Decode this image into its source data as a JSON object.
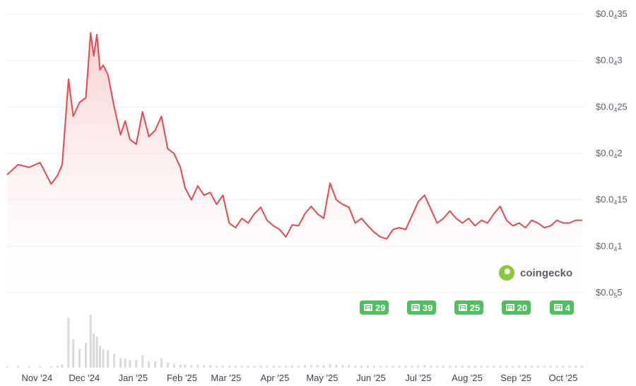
{
  "chart_data": {
    "type": "area",
    "series": [
      {
        "x": [
          "2024-10-13",
          "2024-10-20",
          "2024-10-27",
          "2024-11-03",
          "2024-11-10",
          "2024-11-14",
          "2024-11-17",
          "2024-11-21",
          "2024-11-24",
          "2024-11-28",
          "2024-12-02",
          "2024-12-05",
          "2024-12-07",
          "2024-12-09",
          "2024-12-11",
          "2024-12-13",
          "2024-12-16",
          "2024-12-20",
          "2024-12-24",
          "2024-12-27",
          "2024-12-30",
          "2025-01-03",
          "2025-01-07",
          "2025-01-11",
          "2025-01-15",
          "2025-01-19",
          "2025-01-23",
          "2025-01-27",
          "2025-01-31",
          "2025-02-03",
          "2025-02-07",
          "2025-02-11",
          "2025-02-15",
          "2025-02-19",
          "2025-02-23",
          "2025-02-27",
          "2025-03-03",
          "2025-03-07",
          "2025-03-11",
          "2025-03-15",
          "2025-03-19",
          "2025-03-23",
          "2025-03-27",
          "2025-03-31",
          "2025-04-04",
          "2025-04-08",
          "2025-04-12",
          "2025-04-16",
          "2025-04-20",
          "2025-04-24",
          "2025-04-28",
          "2025-05-02",
          "2025-05-06",
          "2025-05-10",
          "2025-05-14",
          "2025-05-18",
          "2025-05-22",
          "2025-05-26",
          "2025-05-30",
          "2025-06-03",
          "2025-06-07",
          "2025-06-11",
          "2025-06-15",
          "2025-06-19",
          "2025-06-23",
          "2025-06-27",
          "2025-07-01",
          "2025-07-05",
          "2025-07-09",
          "2025-07-13",
          "2025-07-17",
          "2025-07-21",
          "2025-07-25",
          "2025-07-29",
          "2025-08-02",
          "2025-08-06",
          "2025-08-10",
          "2025-08-14",
          "2025-08-18",
          "2025-08-22",
          "2025-08-26",
          "2025-08-30",
          "2025-09-03",
          "2025-09-07",
          "2025-09-11",
          "2025-09-15",
          "2025-09-19",
          "2025-09-23",
          "2025-09-27",
          "2025-10-01",
          "2025-10-05",
          "2025-10-09",
          "2025-10-13"
        ],
        "values": [
          1.77e-05,
          1.88e-05,
          1.85e-05,
          1.9e-05,
          1.67e-05,
          1.76e-05,
          1.88e-05,
          2.8e-05,
          2.4e-05,
          2.55e-05,
          2.6e-05,
          3.3e-05,
          3.05e-05,
          3.28e-05,
          2.9e-05,
          2.95e-05,
          2.85e-05,
          2.5e-05,
          2.2e-05,
          2.35e-05,
          2.15e-05,
          2.1e-05,
          2.45e-05,
          2.18e-05,
          2.25e-05,
          2.4e-05,
          2.05e-05,
          2e-05,
          1.85e-05,
          1.63e-05,
          1.5e-05,
          1.65e-05,
          1.55e-05,
          1.58e-05,
          1.45e-05,
          1.55e-05,
          1.25e-05,
          1.2e-05,
          1.3e-05,
          1.25e-05,
          1.35e-05,
          1.42e-05,
          1.28e-05,
          1.22e-05,
          1.18e-05,
          1.1e-05,
          1.23e-05,
          1.22e-05,
          1.35e-05,
          1.43e-05,
          1.35e-05,
          1.3e-05,
          1.68e-05,
          1.5e-05,
          1.45e-05,
          1.42e-05,
          1.25e-05,
          1.3e-05,
          1.22e-05,
          1.15e-05,
          1.1e-05,
          1.08e-05,
          1.18e-05,
          1.2e-05,
          1.18e-05,
          1.33e-05,
          1.48e-05,
          1.55e-05,
          1.4e-05,
          1.25e-05,
          1.3e-05,
          1.38e-05,
          1.3e-05,
          1.25e-05,
          1.3e-05,
          1.22e-05,
          1.28e-05,
          1.25e-05,
          1.35e-05,
          1.43e-05,
          1.28e-05,
          1.22e-05,
          1.25e-05,
          1.2e-05,
          1.28e-05,
          1.25e-05,
          1.2e-05,
          1.22e-05,
          1.28e-05,
          1.25e-05,
          1.25e-05,
          1.28e-05,
          1.28e-05
        ]
      }
    ],
    "volume": [
      0.02,
      0.03,
      0.02,
      0.02,
      0.02,
      0.03,
      0.05,
      0.8,
      0.45,
      0.3,
      0.4,
      0.85,
      0.55,
      0.5,
      0.35,
      0.3,
      0.28,
      0.22,
      0.15,
      0.15,
      0.12,
      0.12,
      0.2,
      0.1,
      0.1,
      0.15,
      0.08,
      0.06,
      0.05,
      0.05,
      0.04,
      0.04,
      0.04,
      0.04,
      0.03,
      0.03,
      0.03,
      0.03,
      0.03,
      0.03,
      0.03,
      0.03,
      0.03,
      0.03,
      0.03,
      0.03,
      0.03,
      0.03,
      0.04,
      0.04,
      0.04,
      0.04,
      0.06,
      0.05,
      0.04,
      0.04,
      0.03,
      0.03,
      0.03,
      0.03,
      0.03,
      0.03,
      0.03,
      0.03,
      0.03,
      0.03,
      0.04,
      0.04,
      0.03,
      0.03,
      0.03,
      0.03,
      0.03,
      0.03,
      0.03,
      0.03,
      0.03,
      0.03,
      0.03,
      0.03,
      0.03,
      0.03,
      0.03,
      0.03,
      0.03,
      0.03,
      0.03,
      0.03,
      0.03,
      0.03,
      0.03,
      0.03,
      0.03
    ],
    "y_ticks": [
      {
        "main": "$0.0",
        "sub": "5",
        "rest": "5"
      },
      {
        "main": "$0.0",
        "sub": "4",
        "rest": "1"
      },
      {
        "main": "$0.0",
        "sub": "4",
        "rest": "15"
      },
      {
        "main": "$0.0",
        "sub": "4",
        "rest": "2"
      },
      {
        "main": "$0.0",
        "sub": "4",
        "rest": "25"
      },
      {
        "main": "$0.0",
        "sub": "4",
        "rest": "3"
      },
      {
        "main": "$0.0",
        "sub": "4",
        "rest": "35"
      }
    ],
    "ylim": [
      5e-06,
      3.5e-05
    ],
    "x_ticks": [
      {
        "date": "2024-11-01",
        "label": "Nov '24"
      },
      {
        "date": "2024-12-01",
        "label": "Dec '24"
      },
      {
        "date": "2025-01-01",
        "label": "Jan '25"
      },
      {
        "date": "2025-02-01",
        "label": "Feb '25"
      },
      {
        "date": "2025-03-01",
        "label": "Mar '25"
      },
      {
        "date": "2025-04-01",
        "label": "Apr '25"
      },
      {
        "date": "2025-05-01",
        "label": "May '25"
      },
      {
        "date": "2025-06-01",
        "label": "Jun '25"
      },
      {
        "date": "2025-07-01",
        "label": "Jul '25"
      },
      {
        "date": "2025-08-01",
        "label": "Aug '25"
      },
      {
        "date": "2025-09-01",
        "label": "Sep '25"
      },
      {
        "date": "2025-10-01",
        "label": "Oct '25"
      }
    ],
    "xlim": [
      "2024-10-13",
      "2025-10-14"
    ],
    "news_badges": [
      {
        "date": "2025-06-03",
        "count": "29"
      },
      {
        "date": "2025-07-03",
        "count": "39"
      },
      {
        "date": "2025-08-02",
        "count": "25"
      },
      {
        "date": "2025-09-01",
        "count": "20"
      },
      {
        "date": "2025-09-30",
        "count": "4"
      }
    ],
    "colors": {
      "line": "#e5484d",
      "fill_top": "#f7c9c9",
      "fill_bottom": "#ffffff",
      "volume": "#d9d9d9",
      "badge": "#4fbf5f"
    },
    "grid": true,
    "watermark": "coingecko"
  }
}
